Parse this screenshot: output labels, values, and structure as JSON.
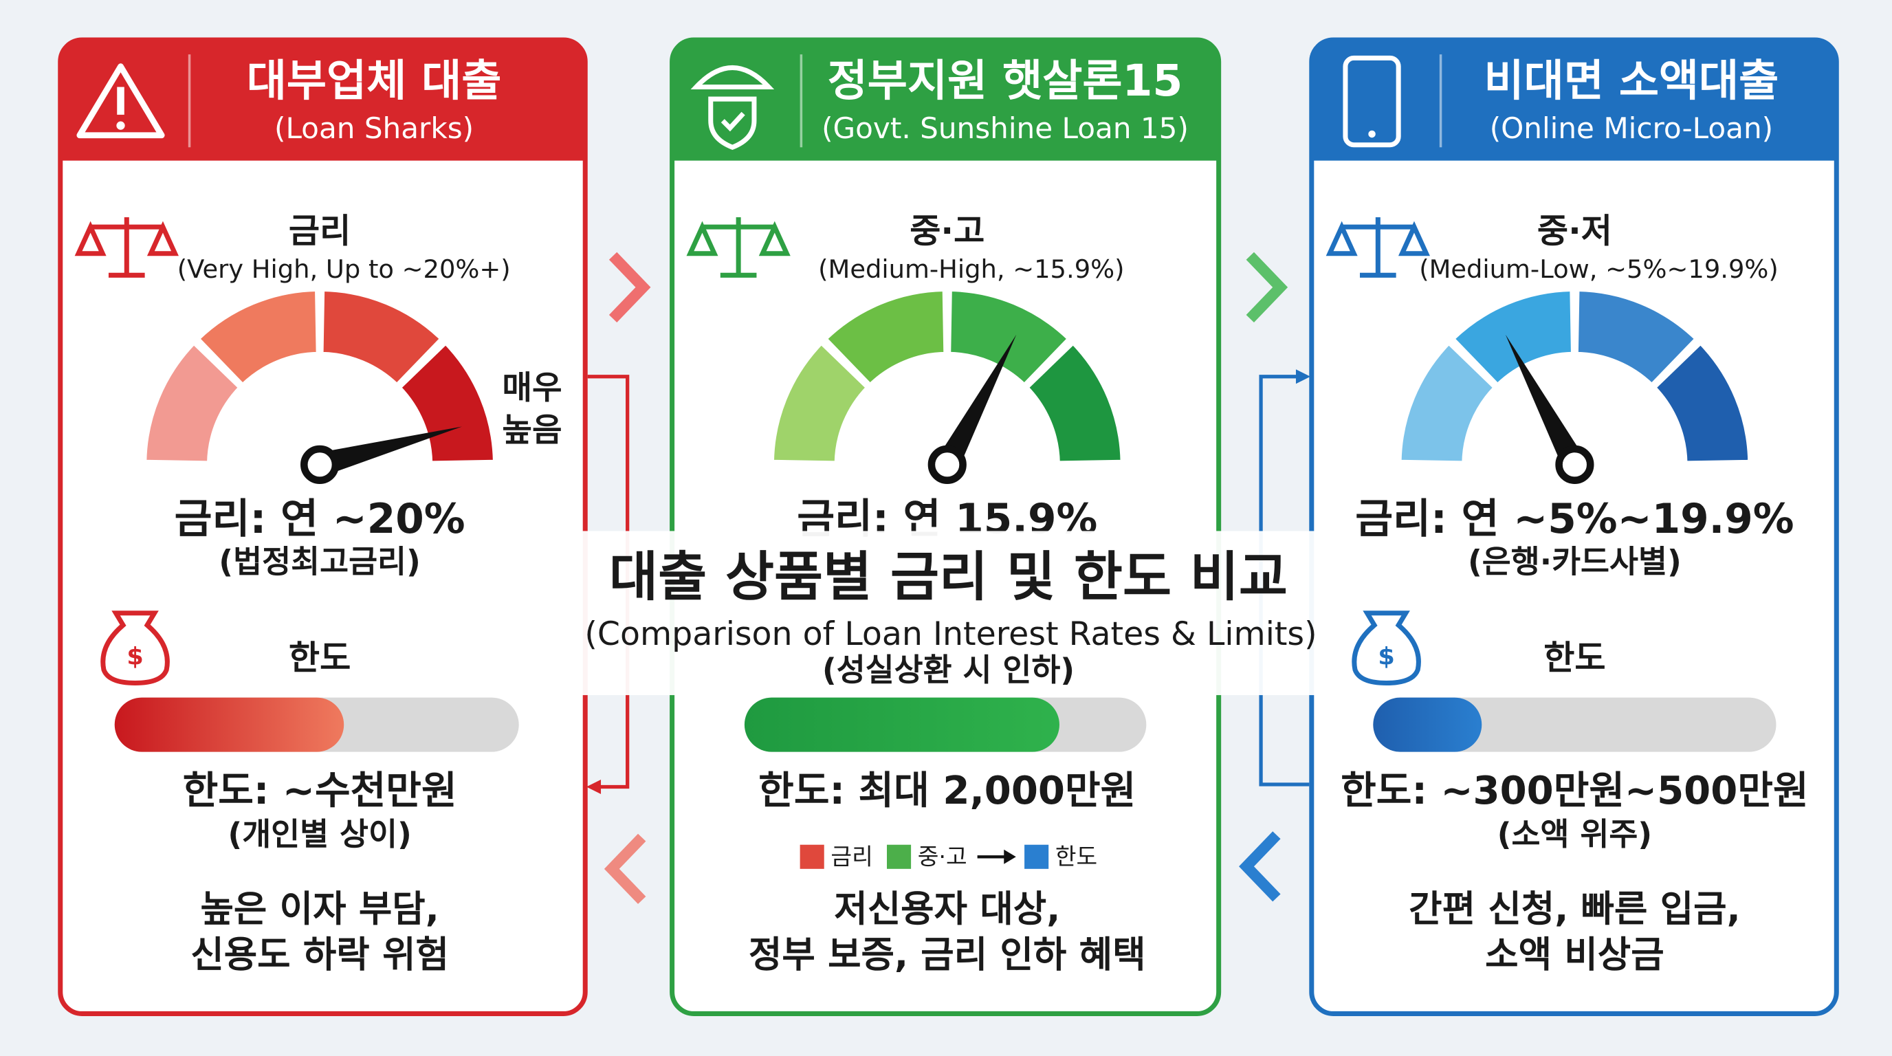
{
  "center": {
    "title": "대출 상품별 금리 및 한도 비교",
    "subtitle": "(Comparison of Loan Interest Rates & Limits)",
    "note": "(성실상환 시 인하)"
  },
  "legend": [
    "금리",
    "중·고",
    "한도"
  ],
  "gauge_side_label": [
    "매우",
    "높음"
  ],
  "panels": [
    {
      "title": "대부업체 대출",
      "subtitle": "(Loan Sharks)",
      "rate_label": "금리",
      "rate_desc": "(Very High, Up to ~20%+)",
      "rate_value": "금리: 연 ~20%",
      "rate_note": "(법정최고금리)",
      "limit_label": "한도",
      "limit_value": "한도: ~수천만원",
      "limit_note": "(개인별 상이)",
      "summary": [
        "높은 이자 부담,",
        "신용도 하락 위험"
      ]
    },
    {
      "title": "정부지원 햇살론15",
      "subtitle": "(Govt. Sunshine Loan 15)",
      "rate_label": "중·고",
      "rate_desc": "(Medium-High, ~15.9%)",
      "rate_value": "금리: 연 15.9%",
      "limit_value": "한도: 최대 2,000만원",
      "summary": [
        "저신용자 대상,",
        "정부 보증, 금리 인하 혜택"
      ]
    },
    {
      "title": "비대면 소액대출",
      "subtitle": "(Online Micro-Loan)",
      "rate_label": "중·저",
      "rate_desc": "(Medium-Low, ~5%~19.9%)",
      "rate_value": "금리: 연 ~5%~19.9%",
      "rate_note": "(은행·카드사별)",
      "limit_label": "한도",
      "limit_value": "한도: ~300만원~500만원",
      "limit_note": "(소액 위주)",
      "summary": [
        "간편 신청, 빠른 입금,",
        "소액 비상금"
      ]
    }
  ]
}
